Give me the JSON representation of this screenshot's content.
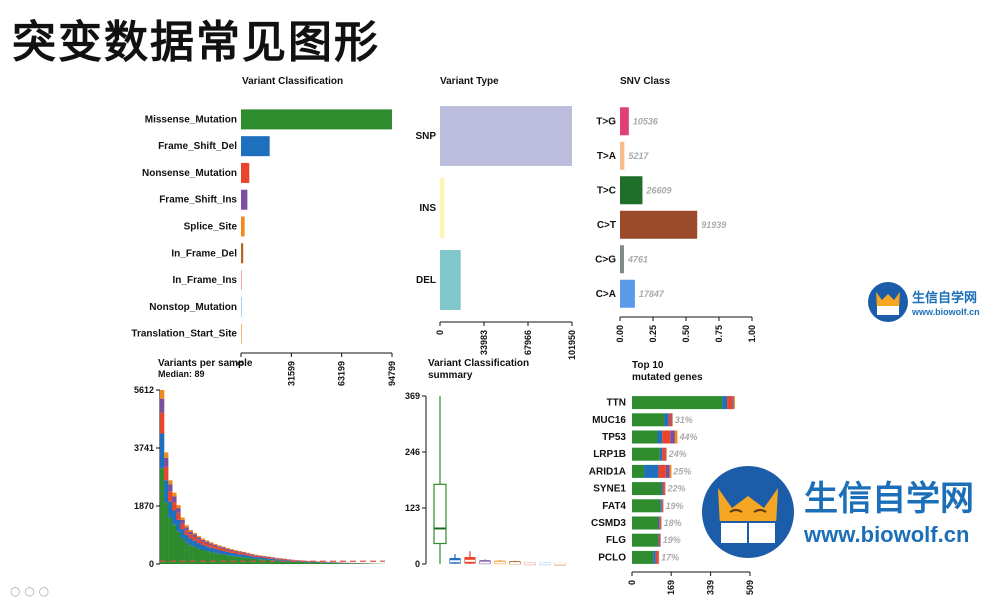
{
  "page": {
    "title": "突变数据常见图形"
  },
  "brand": {
    "small_cn": "生信自学网",
    "small_url": "www.biowolf.cn",
    "large_cn": "生信自学网",
    "large_url": "www.biowolf.cn"
  },
  "chart_data": [
    {
      "id": "variant-classification",
      "type": "bar",
      "orientation": "horizontal",
      "title": "Variant Classification",
      "categories": [
        "Missense_Mutation",
        "Frame_Shift_Del",
        "Nonsense_Mutation",
        "Frame_Shift_Ins",
        "Splice_Site",
        "In_Frame_Del",
        "In_Frame_Ins",
        "Nonstop_Mutation",
        "Translation_Start_Site"
      ],
      "values": [
        94799,
        18000,
        5200,
        4000,
        2300,
        1400,
        300,
        250,
        200
      ],
      "colors": [
        "#2e8b2e",
        "#1f6fbf",
        "#e8452c",
        "#7a4fa0",
        "#f08a1c",
        "#b5651d",
        "#f4a8a8",
        "#a6d5f0",
        "#f4b67a"
      ],
      "xticks": [
        0,
        31599,
        63199,
        94799
      ],
      "xlim": [
        0,
        94799
      ]
    },
    {
      "id": "variant-type",
      "type": "bar",
      "orientation": "horizontal",
      "title": "Variant Type",
      "categories": [
        "SNP",
        "INS",
        "DEL"
      ],
      "values": [
        101950,
        3500,
        16000
      ],
      "colors": [
        "#bcbcdc",
        "#fdf6b6",
        "#80c8cc"
      ],
      "xticks": [
        0,
        33983,
        67966,
        101950
      ],
      "xlim": [
        0,
        101950
      ]
    },
    {
      "id": "snv-class",
      "type": "bar",
      "orientation": "horizontal",
      "title": "SNV Class",
      "categories": [
        "T>G",
        "T>A",
        "T>C",
        "C>T",
        "C>G",
        "C>A"
      ],
      "values": [
        10536,
        5217,
        26609,
        91939,
        4761,
        17847
      ],
      "labels": [
        "10536",
        "5217",
        "26609",
        "91939",
        "4761",
        "17847"
      ],
      "fractions": [
        0.067,
        0.033,
        0.17,
        0.585,
        0.03,
        0.113
      ],
      "colors": [
        "#e0407a",
        "#f7ba8a",
        "#1f6f2a",
        "#9b4a2a",
        "#7f8a86",
        "#5a9ae8"
      ],
      "xticks": [
        "0.00",
        "0.25",
        "0.50",
        "0.75",
        "1.00"
      ],
      "xlim": [
        0,
        1
      ]
    },
    {
      "id": "variants-per-sample",
      "type": "bar",
      "title": "Variants per sample",
      "subtitle": "Median: 89",
      "yticks": [
        "0",
        "1870",
        "3741",
        "5612"
      ],
      "ylim": [
        0,
        5612
      ],
      "median": 89,
      "profile": [
        5612,
        3600,
        2700,
        2300,
        1900,
        1500,
        1250,
        1100,
        1000,
        900,
        820,
        760,
        700,
        650,
        600,
        560,
        520,
        480,
        450,
        420,
        390,
        360,
        330,
        300,
        280,
        260,
        240,
        220,
        200,
        185,
        170,
        155,
        140,
        128,
        118,
        108,
        100,
        92,
        85,
        78,
        72,
        66,
        60,
        55,
        50,
        45,
        40,
        36,
        32,
        28,
        24,
        20,
        16,
        12,
        8
      ],
      "colors": [
        "#2e8b2e",
        "#1f6fbf",
        "#e8452c",
        "#7a4fa0",
        "#f08a1c"
      ]
    },
    {
      "id": "variant-classification-summary",
      "type": "box",
      "title": "Variant Classification",
      "subtitle": "summary",
      "yticks": [
        "0",
        "123",
        "246",
        "369"
      ],
      "ylim": [
        0,
        369
      ],
      "boxes": [
        {
          "color": "#2e8b2e",
          "min": 0,
          "q1": 45,
          "median": 78,
          "q3": 175,
          "max": 369
        },
        {
          "color": "#1f6fbf",
          "min": 0,
          "q1": 2,
          "median": 6,
          "q3": 12,
          "max": 22
        },
        {
          "color": "#e8452c",
          "min": 0,
          "q1": 2,
          "median": 7,
          "q3": 14,
          "max": 28
        },
        {
          "color": "#7a4fa0",
          "min": 0,
          "q1": 1,
          "median": 3,
          "q3": 7,
          "max": 10
        },
        {
          "color": "#f08a1c",
          "min": 0,
          "q1": 1,
          "median": 3,
          "q3": 6,
          "max": 9
        },
        {
          "color": "#b5651d",
          "min": 0,
          "q1": 1,
          "median": 2,
          "q3": 5,
          "max": 7
        },
        {
          "color": "#f4a8a8",
          "min": 0,
          "q1": 0,
          "median": 1,
          "q3": 3,
          "max": 5
        },
        {
          "color": "#a6d5f0",
          "min": 0,
          "q1": 0,
          "median": 1,
          "q3": 3,
          "max": 5
        },
        {
          "color": "#f4b67a",
          "min": 0,
          "q1": 0,
          "median": 1,
          "q3": 2,
          "max": 4
        }
      ]
    },
    {
      "id": "top10-mutated-genes",
      "type": "bar",
      "orientation": "horizontal",
      "title": "Top 10",
      "subtitle": "mutated genes",
      "categories": [
        "TTN",
        "MUC16",
        "TP53",
        "LRP1B",
        "ARID1A",
        "SYNE1",
        "FAT4",
        "CSMD3",
        "FLG",
        "PCLO"
      ],
      "values": [
        509,
        176,
        196,
        150,
        170,
        145,
        136,
        128,
        124,
        117
      ],
      "labels": [
        "",
        "31%",
        "44%",
        "24%",
        "25%",
        "22%",
        "19%",
        "18%",
        "19%",
        "17%"
      ],
      "xticks": [
        "0",
        "169",
        "339",
        "509"
      ],
      "xlim": [
        0,
        509
      ],
      "stack_colors": [
        "#2e8b2e",
        "#1f6fbf",
        "#e8452c",
        "#7a4fa0",
        "#f08a1c"
      ],
      "stacks": [
        [
          390,
          20,
          22,
          6,
          6
        ],
        [
          140,
          18,
          12,
          4,
          2
        ],
        [
          110,
          20,
          35,
          20,
          11
        ],
        [
          120,
          10,
          15,
          3,
          2
        ],
        [
          52,
          62,
          32,
          16,
          8
        ],
        [
          125,
          8,
          8,
          2,
          2
        ],
        [
          122,
          6,
          5,
          2,
          1
        ],
        [
          112,
          6,
          6,
          2,
          2
        ],
        [
          112,
          4,
          5,
          2,
          1
        ],
        [
          92,
          10,
          10,
          3,
          2
        ]
      ]
    }
  ]
}
